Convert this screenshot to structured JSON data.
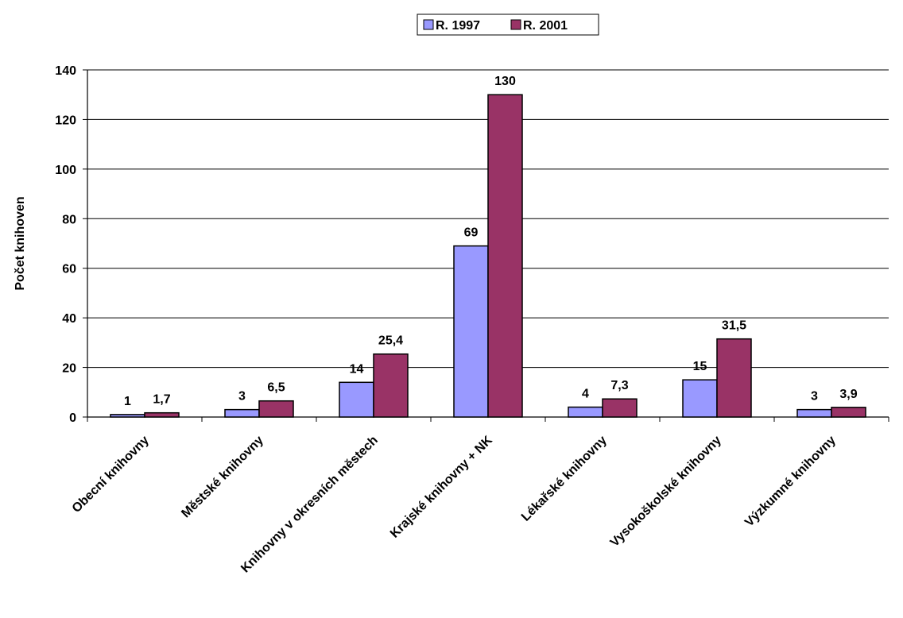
{
  "chart_data": {
    "type": "bar",
    "categories": [
      "Obecní knihovny",
      "Městské knihovny",
      "Knihovny v okresních městech",
      "Krajské knihovny + NK",
      "Lékařské knihovny",
      "Vysokoškolské knihovny",
      "Výzkumné knihovny"
    ],
    "series": [
      {
        "name": "R. 1997",
        "color": "#9999ff",
        "values": [
          1,
          3,
          14,
          69,
          4,
          15,
          3
        ],
        "labels": [
          "1",
          "3",
          "14",
          "69",
          "4",
          "15",
          "3"
        ]
      },
      {
        "name": "R. 2001",
        "color": "#993366",
        "values": [
          1.7,
          6.5,
          25.4,
          130,
          7.3,
          31.5,
          3.9
        ],
        "labels": [
          "1,7",
          "6,5",
          "25,4",
          "130",
          "7,3",
          "31,5",
          "3,9"
        ]
      }
    ],
    "ylabel": "Počet knihoven",
    "ylim": [
      0,
      140
    ],
    "yticks": [
      0,
      20,
      40,
      60,
      80,
      100,
      120,
      140
    ],
    "grid": true,
    "legend_position": "top-center"
  }
}
